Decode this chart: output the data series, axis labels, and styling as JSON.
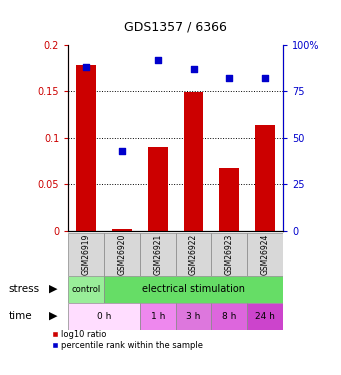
{
  "title": "GDS1357 / 6366",
  "samples": [
    "GSM26919",
    "GSM26920",
    "GSM26921",
    "GSM26922",
    "GSM26923",
    "GSM26924"
  ],
  "bar_values": [
    0.178,
    0.002,
    0.09,
    0.149,
    0.068,
    0.114
  ],
  "scatter_pct": [
    88,
    43,
    92,
    87,
    82,
    82
  ],
  "bar_color": "#cc0000",
  "scatter_color": "#0000cc",
  "ylim_left": [
    0,
    0.2
  ],
  "ylim_right": [
    0,
    100
  ],
  "yticks_left": [
    0,
    0.05,
    0.1,
    0.15,
    0.2
  ],
  "yticks_right": [
    0,
    25,
    50,
    75,
    100
  ],
  "ytick_labels_left": [
    "0",
    "0.05",
    "0.1",
    "0.15",
    "0.2"
  ],
  "ytick_labels_right": [
    "0",
    "25",
    "50",
    "75",
    "100%"
  ],
  "legend_red": "log10 ratio",
  "legend_blue": "percentile rank within the sample",
  "xlabel_stress": "stress",
  "xlabel_time": "time",
  "control_color": "#99ee99",
  "stim_color": "#66dd66",
  "time_data": [
    {
      "text": "0 h",
      "start": 0,
      "end": 2,
      "color": "#ffddff"
    },
    {
      "text": "1 h",
      "start": 2,
      "end": 3,
      "color": "#ee88ee"
    },
    {
      "text": "3 h",
      "start": 3,
      "end": 4,
      "color": "#dd77dd"
    },
    {
      "text": "8 h",
      "start": 4,
      "end": 5,
      "color": "#dd66dd"
    },
    {
      "text": "24 h",
      "start": 5,
      "end": 6,
      "color": "#cc44cc"
    }
  ],
  "sample_box_color": "#d8d8d8",
  "fig_width": 3.41,
  "fig_height": 3.75
}
